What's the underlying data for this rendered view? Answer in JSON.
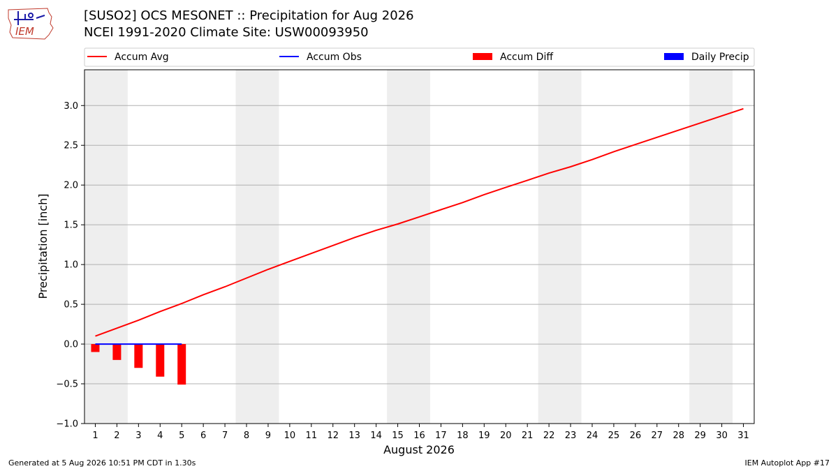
{
  "header": {
    "title_line1": "[SUSO2] OCS MESONET :: Precipitation for Aug 2026",
    "title_line2": "NCEI 1991-2020 Climate Site: USW00093950",
    "logo_text": "IEM"
  },
  "footer": {
    "left": "Generated at 5 Aug 2026 10:51 PM CDT in 1.30s",
    "right": "IEM Autoplot App #17"
  },
  "colors": {
    "accum_avg": "#ff0000",
    "accum_obs": "#0000ff",
    "accum_diff": "#ff0000",
    "daily_precip": "#0000ff",
    "weekend_band": "#eeeeee",
    "grid": "#b0b0b0"
  },
  "chart_data": {
    "type": "line",
    "xlabel": "August 2026",
    "ylabel": "Precipitation [inch]",
    "xlim": [
      0.5,
      31.5
    ],
    "ylim": [
      -1.0,
      3.45
    ],
    "yticks": [
      -1.0,
      -0.5,
      0.0,
      0.5,
      1.0,
      1.5,
      2.0,
      2.5,
      3.0
    ],
    "ytick_labels": [
      "−1.0",
      "−0.5",
      "0.0",
      "0.5",
      "1.0",
      "1.5",
      "2.0",
      "2.5",
      "3.0"
    ],
    "x": [
      1,
      2,
      3,
      4,
      5,
      6,
      7,
      8,
      9,
      10,
      11,
      12,
      13,
      14,
      15,
      16,
      17,
      18,
      19,
      20,
      21,
      22,
      23,
      24,
      25,
      26,
      27,
      28,
      29,
      30,
      31
    ],
    "xtick_labels": [
      "1",
      "2",
      "3",
      "4",
      "5",
      "6",
      "7",
      "8",
      "9",
      "10",
      "11",
      "12",
      "13",
      "14",
      "15",
      "16",
      "17",
      "18",
      "19",
      "20",
      "21",
      "22",
      "23",
      "24",
      "25",
      "26",
      "27",
      "28",
      "29",
      "30",
      "31"
    ],
    "grid": "horizontal",
    "legend_position": "top",
    "weekend_bands": [
      [
        0.5,
        2.5
      ],
      [
        7.5,
        9.5
      ],
      [
        14.5,
        16.5
      ],
      [
        21.5,
        23.5
      ],
      [
        28.5,
        30.5
      ]
    ],
    "legend": [
      {
        "label": "Accum Avg",
        "kind": "line",
        "color": "#ff0000"
      },
      {
        "label": "Accum Obs",
        "kind": "line",
        "color": "#0000ff"
      },
      {
        "label": "Accum Diff",
        "kind": "bar",
        "color": "#ff0000"
      },
      {
        "label": "Daily Precip",
        "kind": "bar",
        "color": "#0000ff"
      }
    ],
    "series": [
      {
        "name": "Accum Avg",
        "kind": "line",
        "color": "#ff0000",
        "x": [
          1,
          2,
          3,
          4,
          5,
          6,
          7,
          8,
          9,
          10,
          11,
          12,
          13,
          14,
          15,
          16,
          17,
          18,
          19,
          20,
          21,
          22,
          23,
          24,
          25,
          26,
          27,
          28,
          29,
          30,
          31
        ],
        "values": [
          0.1,
          0.2,
          0.3,
          0.41,
          0.51,
          0.62,
          0.72,
          0.83,
          0.94,
          1.04,
          1.14,
          1.24,
          1.34,
          1.43,
          1.51,
          1.6,
          1.69,
          1.78,
          1.88,
          1.97,
          2.06,
          2.15,
          2.23,
          2.32,
          2.42,
          2.51,
          2.6,
          2.69,
          2.78,
          2.87,
          2.96
        ]
      },
      {
        "name": "Accum Obs",
        "kind": "line",
        "color": "#0000ff",
        "x": [
          1,
          2,
          3,
          4,
          5
        ],
        "values": [
          0.0,
          0.0,
          0.0,
          0.0,
          0.0
        ]
      },
      {
        "name": "Accum Diff",
        "kind": "bar",
        "color": "#ff0000",
        "x": [
          1,
          2,
          3,
          4,
          5
        ],
        "values": [
          -0.1,
          -0.2,
          -0.3,
          -0.41,
          -0.51
        ]
      },
      {
        "name": "Daily Precip",
        "kind": "bar",
        "color": "#0000ff",
        "x": [],
        "values": []
      }
    ]
  }
}
